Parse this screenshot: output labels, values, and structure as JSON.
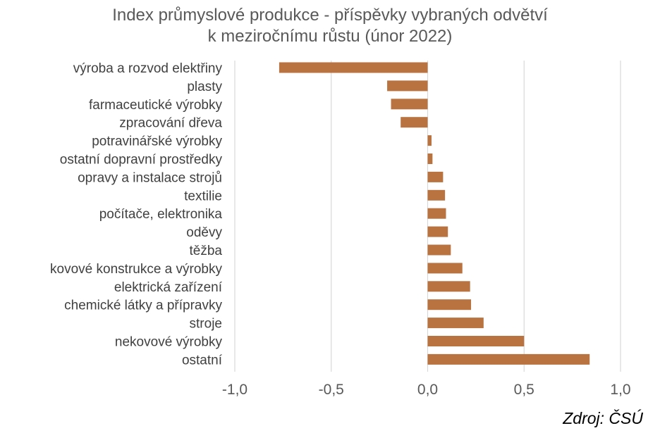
{
  "chart_data": {
    "type": "bar",
    "orientation": "horizontal",
    "title_lines": [
      "Index průmyslové produkce - příspěvky vybraných odvětví",
      "k meziročnímu růstu (únor 2022)"
    ],
    "categories": [
      "výroba a rozvod elektřiny",
      "plasty",
      "farmaceutické výrobky",
      "zpracování dřeva",
      "potravinářské výrobky",
      "ostatní dopravní prostředky",
      "opravy a instalace strojů",
      "textilie",
      "počítače, elektronika",
      "oděvy",
      "těžba",
      "kovové konstrukce a výrobky",
      "elektrická zařízení",
      "chemické látky a přípravky",
      "stroje",
      "nekovové výrobky",
      "ostatní"
    ],
    "values": [
      -0.77,
      -0.21,
      -0.19,
      -0.14,
      0.02,
      0.025,
      0.08,
      0.09,
      0.095,
      0.105,
      0.12,
      0.18,
      0.22,
      0.225,
      0.29,
      0.5,
      0.84
    ],
    "xlim": [
      -1.0,
      1.0
    ],
    "xticks": [
      -1.0,
      -0.5,
      0.0,
      0.5,
      1.0
    ],
    "xtick_labels": [
      "-1,0",
      "-0,5",
      "0,0",
      "0,5",
      "1,0"
    ],
    "bar_color": "#b87340",
    "grid": true,
    "source": "Zdroj: ČSÚ"
  }
}
